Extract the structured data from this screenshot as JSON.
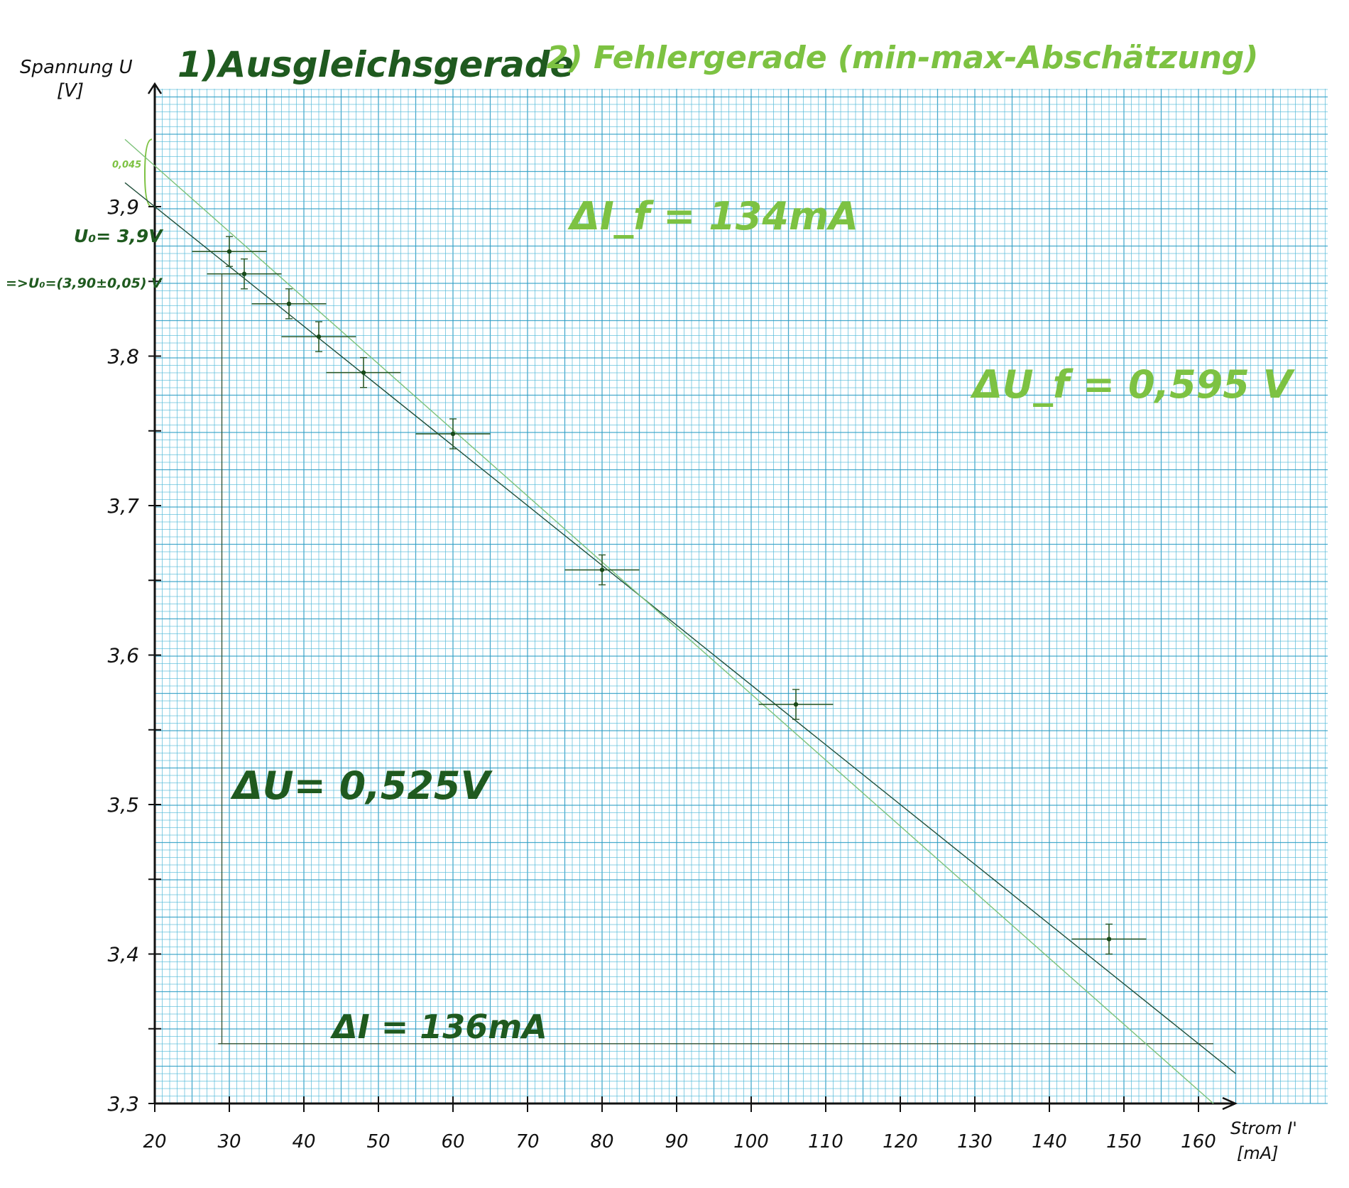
{
  "chart_data": {
    "type": "scatter",
    "title": "1)Ausgleichsgerade",
    "subtitle": "2) Fehlergerade (min-max-Abschätzung)",
    "ylabel": "Spannung U",
    "yunit": "[V]",
    "xlabel": "Strom I'",
    "xunit": "[mA]",
    "xlim": [
      20,
      167
    ],
    "ylim": [
      3.3,
      3.99
    ],
    "x_ticks": [
      20,
      30,
      40,
      50,
      60,
      70,
      80,
      90,
      100,
      110,
      120,
      130,
      140,
      150,
      160
    ],
    "x_tick_labels": [
      "20",
      "30",
      "40",
      "50",
      "60",
      "70",
      "80",
      "90",
      "100",
      "110",
      "120",
      "130",
      "140",
      "150",
      "160"
    ],
    "y_ticks": [
      3.3,
      3.4,
      3.5,
      3.6,
      3.7,
      3.8,
      3.9
    ],
    "y_tick_labels": [
      "3,3",
      "3,4",
      "3,5",
      "3,6",
      "3,7",
      "3,8",
      "3,9"
    ],
    "grid": true,
    "points": [
      {
        "x": 30,
        "y": 3.87,
        "xerr": 5,
        "yerr": 0.01
      },
      {
        "x": 32,
        "y": 3.855,
        "xerr": 5,
        "yerr": 0.01
      },
      {
        "x": 38,
        "y": 3.835,
        "xerr": 5,
        "yerr": 0.01
      },
      {
        "x": 42,
        "y": 3.813,
        "xerr": 5,
        "yerr": 0.01
      },
      {
        "x": 48,
        "y": 3.789,
        "xerr": 5,
        "yerr": 0.01
      },
      {
        "x": 60,
        "y": 3.748,
        "xerr": 5,
        "yerr": 0.01
      },
      {
        "x": 80,
        "y": 3.657,
        "xerr": 5,
        "yerr": 0.01
      },
      {
        "x": 106,
        "y": 3.567,
        "xerr": 5,
        "yerr": 0.01
      },
      {
        "x": 148,
        "y": 3.41,
        "xerr": 5,
        "yerr": 0.01
      }
    ],
    "fit_line": {
      "x": [
        20,
        165
      ],
      "y": [
        3.9,
        3.32
      ]
    },
    "error_line": {
      "x": [
        16,
        162
      ],
      "y": [
        3.945,
        3.3
      ]
    },
    "annotations": {
      "u0": "U₀= 3,9V",
      "u0_result": "=>U₀=(3,90±0,05) V",
      "intercept_diff": "0,045",
      "delta_u": "ΔU= 0,525V",
      "delta_i": "ΔI = 136mA",
      "delta_i_f": "ΔI_f = 134mA",
      "delta_u_f": "ΔU_f = 0,595 V"
    }
  },
  "colors": {
    "grid": "#4fb8d8",
    "grid_major": "#2a9cc4",
    "dark_green": "#1f5a1f",
    "light_green": "#7dc242",
    "axis": "#111111"
  }
}
